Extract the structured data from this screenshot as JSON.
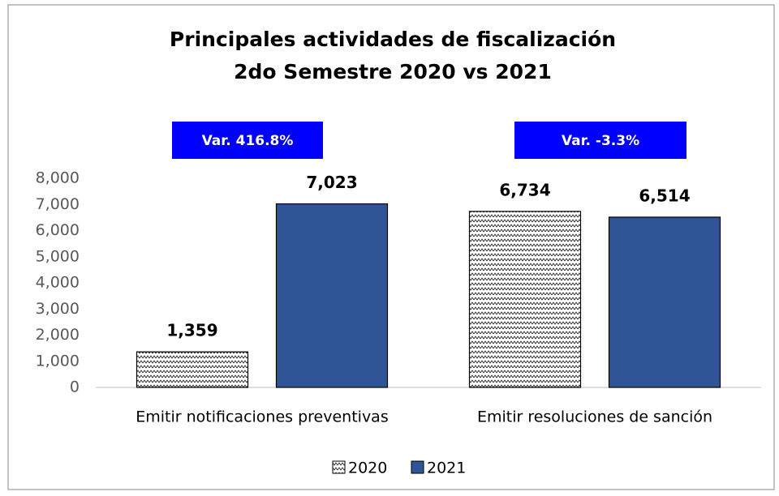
{
  "chart_data": {
    "type": "bar",
    "title": [
      "Principales actividades de fiscalización",
      "2do Semestre 2020 vs 2021"
    ],
    "categories": [
      "Emitir notificaciones preventivas",
      "Emitir resoluciones de sanción"
    ],
    "series": [
      {
        "name": "2020",
        "color": "#ffffff",
        "pattern": "zigzag",
        "values": [
          1359,
          6734
        ],
        "value_labels": [
          "1,359",
          "6,734"
        ]
      },
      {
        "name": "2021",
        "color": "#2f5597",
        "values": [
          7023,
          6514
        ],
        "value_labels": [
          "7,023",
          "6,514"
        ]
      }
    ],
    "annotations": [
      "Var. 416.8%",
      "Var. -3.3%"
    ],
    "annotation_color": "#0000ff",
    "ylim": [
      0,
      8000
    ],
    "yticks": [
      0,
      {
        "value": 1000,
        "label": "1,000"
      },
      {
        "value": 2000,
        "label": "2,000"
      },
      {
        "value": 3000,
        "label": "3,000"
      },
      {
        "value": 4000,
        "label": "4,000"
      },
      {
        "value": 5000,
        "label": "5,000"
      },
      {
        "value": 6000,
        "label": "6,000"
      },
      {
        "value": 7000,
        "label": "7,000"
      },
      {
        "value": 8000,
        "label": "8,000"
      }
    ],
    "grid": false,
    "legend": "bottom"
  }
}
